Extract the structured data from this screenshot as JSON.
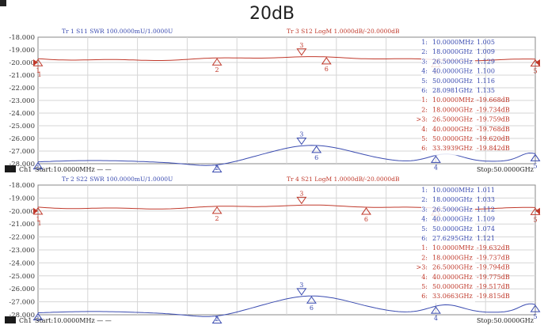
{
  "title": "20dB",
  "panels": [
    {
      "id": "top",
      "y_labels": [
        "-18.000",
        "-19.000",
        "-20.000",
        "-21.000",
        "-22.000",
        "-23.000",
        "-24.000",
        "-25.000",
        "-26.000",
        "-27.000",
        "-28.000"
      ],
      "trace_a": {
        "label": "Tr 1  S11 SWR 100.0000mU/1.0000U",
        "color": "#3a4bb0"
      },
      "trace_b": {
        "label": "Tr 3  S12 LogM 1.0000dB/-20.0000dB",
        "color": "#c0392b"
      },
      "ref_marker": "1",
      "channel_badge": "1",
      "channel_text": "Ch1",
      "start": "Start:10.0000MHz  — —",
      "stop": "Stop:50.0000GHz",
      "markers_b": [
        {
          "n": "1",
          "pos": 0.0
        },
        {
          "n": "2",
          "pos": 0.36
        },
        {
          "n": "3",
          "pos": 0.53
        },
        {
          "n": "4",
          "pos": 0.8
        },
        {
          "n": "5",
          "pos": 1.0
        },
        {
          "n": "6",
          "pos": 0.58
        }
      ],
      "markers_a": [
        {
          "n": "1",
          "pos": 0.0
        },
        {
          "n": "2",
          "pos": 0.36
        },
        {
          "n": "3",
          "pos": 0.53
        },
        {
          "n": "4",
          "pos": 0.8
        },
        {
          "n": "5",
          "pos": 1.0
        },
        {
          "n": "6",
          "pos": 0.56
        }
      ],
      "table": [
        {
          "n": "1:",
          "f": "10.0000MHz",
          "v": "1.005",
          "c": "a"
        },
        {
          "n": "2:",
          "f": "18.0000GHz",
          "v": "1.009",
          "c": "a"
        },
        {
          "n": "3:",
          "f": "26.5000GHz",
          "v": "1.129",
          "c": "a"
        },
        {
          "n": "4:",
          "f": "40.0000GHz",
          "v": "1.100",
          "c": "a"
        },
        {
          "n": "5:",
          "f": "50.0000GHz",
          "v": "1.116",
          "c": "a"
        },
        {
          "n": "6:",
          "f": "28.0981GHz",
          "v": "1.135",
          "c": "a"
        },
        {
          "n": "1:",
          "f": "10.0000MHz",
          "v": "-19.668dB",
          "c": "b"
        },
        {
          "n": "2:",
          "f": "18.0000GHz",
          "v": "-19.734dB",
          "c": "b"
        },
        {
          "n": ">3:",
          "f": "26.5000GHz",
          "v": "-19.759dB",
          "c": "b"
        },
        {
          "n": "4:",
          "f": "40.0000GHz",
          "v": "-19.768dB",
          "c": "b"
        },
        {
          "n": "5:",
          "f": "50.0000GHz",
          "v": "-19.620dB",
          "c": "b"
        },
        {
          "n": "6:",
          "f": "33.3939GHz",
          "v": "-19.842dB",
          "c": "b"
        }
      ]
    },
    {
      "id": "bottom",
      "y_labels": [
        "-18.000",
        "-19.000",
        "-20.000",
        "-21.000",
        "-22.000",
        "-23.000",
        "-24.000",
        "-25.000",
        "-26.000",
        "-27.000",
        "-28.000"
      ],
      "trace_a": {
        "label": "Tr 2  S22 SWR 100.0000mU/1.0000U",
        "color": "#3a4bb0"
      },
      "trace_b": {
        "label": "Tr 4  S21 LogM 1.0000dB/-20.0000dB",
        "color": "#c0392b"
      },
      "ref_marker": "1",
      "channel_badge": "2",
      "channel_text": "Ch1",
      "start": "Start:10.0000MHz  — —",
      "stop": "Stop:50.0000GHz",
      "markers_b": [
        {
          "n": "1",
          "pos": 0.0
        },
        {
          "n": "2",
          "pos": 0.36
        },
        {
          "n": "3",
          "pos": 0.53
        },
        {
          "n": "4",
          "pos": 0.8
        },
        {
          "n": "5",
          "pos": 1.0
        },
        {
          "n": "6",
          "pos": 0.66
        }
      ],
      "markers_a": [
        {
          "n": "1",
          "pos": 0.0
        },
        {
          "n": "2",
          "pos": 0.36
        },
        {
          "n": "3",
          "pos": 0.53
        },
        {
          "n": "4",
          "pos": 0.8
        },
        {
          "n": "5",
          "pos": 1.0
        },
        {
          "n": "6",
          "pos": 0.55
        }
      ],
      "table": [
        {
          "n": "1:",
          "f": "10.0000MHz",
          "v": "1.011",
          "c": "a"
        },
        {
          "n": "2:",
          "f": "18.0000GHz",
          "v": "1.033",
          "c": "a"
        },
        {
          "n": "3:",
          "f": "26.5000GHz",
          "v": "1.112",
          "c": "a"
        },
        {
          "n": "4:",
          "f": "40.0000GHz",
          "v": "1.109",
          "c": "a"
        },
        {
          "n": "5:",
          "f": "50.0000GHz",
          "v": "1.074",
          "c": "a"
        },
        {
          "n": "6:",
          "f": "27.6295GHz",
          "v": "1.121",
          "c": "a"
        },
        {
          "n": "1:",
          "f": "10.0000MHz",
          "v": "-19.632dB",
          "c": "b"
        },
        {
          "n": "2:",
          "f": "18.0000GHz",
          "v": "-19.737dB",
          "c": "b"
        },
        {
          "n": ">3:",
          "f": "26.5000GHz",
          "v": "-19.794dB",
          "c": "b"
        },
        {
          "n": "4:",
          "f": "40.0000GHz",
          "v": "-19.775dB",
          "c": "b"
        },
        {
          "n": "5:",
          "f": "50.0000GHz",
          "v": "-19.517dB",
          "c": "b"
        },
        {
          "n": "6:",
          "f": "33.0663GHz",
          "v": "-19.815dB",
          "c": "b"
        }
      ]
    }
  ]
}
